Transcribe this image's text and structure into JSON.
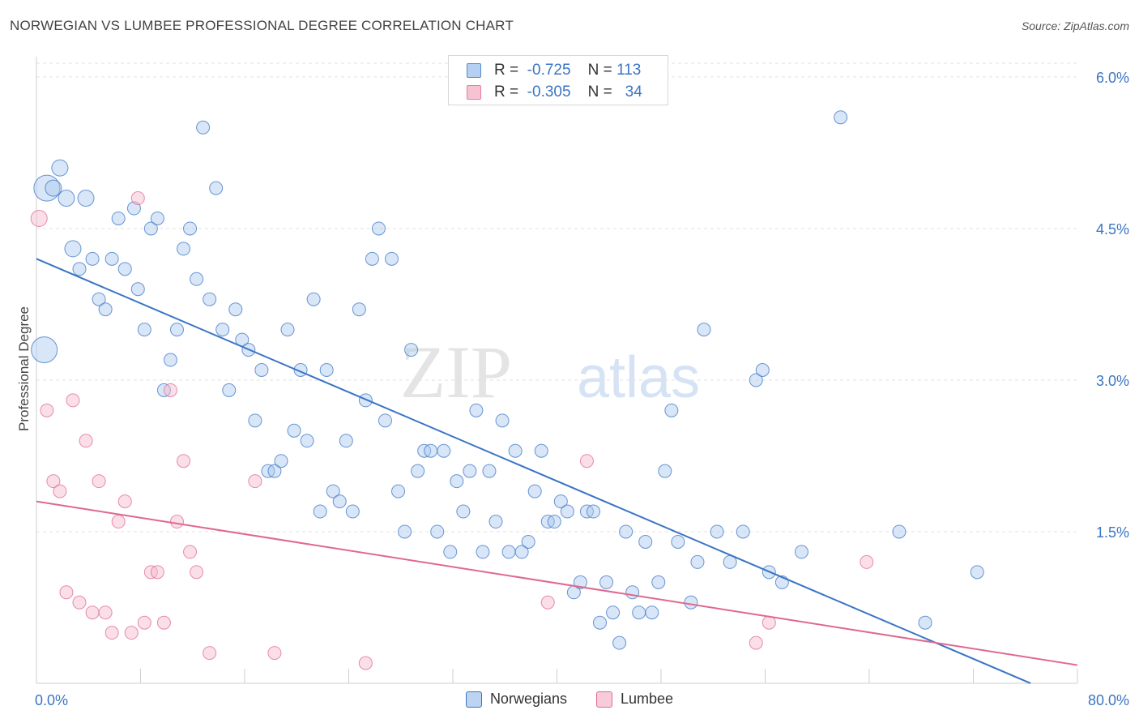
{
  "title": "NORWEGIAN VS LUMBEE PROFESSIONAL DEGREE CORRELATION CHART",
  "source": "Source: ZipAtlas.com",
  "watermark": {
    "zip": "ZIP",
    "atlas": "atlas"
  },
  "colors": {
    "blue": "#3a75c4",
    "blue_fill": "#a9c8ee",
    "pink": "#e0688f",
    "pink_fill": "#f5b9cc",
    "label": "#3a75c4"
  },
  "legend": {
    "rows": [
      {
        "r_label": "R =",
        "r_value": "-0.725",
        "n_label": "N =",
        "n_value": "113"
      },
      {
        "r_label": "R =",
        "r_value": "-0.305",
        "n_label": "N =",
        "n_value": "34"
      }
    ]
  },
  "chart_data": {
    "type": "scatter",
    "title": "NORWEGIAN VS LUMBEE PROFESSIONAL DEGREE CORRELATION CHART",
    "xlabel": "",
    "ylabel": "Professional Degree",
    "xlim": [
      0,
      80
    ],
    "ylim": [
      0,
      6.2
    ],
    "x_tick_labels": [
      "0.0%",
      "80.0%"
    ],
    "y_ticks": [
      1.5,
      3.0,
      4.5,
      6.0
    ],
    "y_tick_labels": [
      "1.5%",
      "3.0%",
      "4.5%",
      "6.0%"
    ],
    "grid": "horizontal dashed",
    "legend_position": "top-center",
    "series": [
      {
        "name": "Norwegians",
        "r": -0.725,
        "n": 113,
        "trend": [
          [
            0,
            4.2
          ],
          [
            76.4,
            0
          ]
        ],
        "points": [
          [
            0.6,
            3.3,
            3
          ],
          [
            0.8,
            4.9,
            3
          ],
          [
            1.3,
            4.9,
            2
          ],
          [
            1.8,
            5.1,
            2
          ],
          [
            2.3,
            4.8,
            2
          ],
          [
            2.8,
            4.3,
            2
          ],
          [
            3.3,
            4.1,
            1
          ],
          [
            3.8,
            4.8,
            2
          ],
          [
            4.3,
            4.2,
            1
          ],
          [
            4.8,
            3.8,
            1
          ],
          [
            5.3,
            3.7,
            1
          ],
          [
            5.8,
            4.2,
            1
          ],
          [
            6.3,
            4.6,
            1
          ],
          [
            6.8,
            4.1,
            1
          ],
          [
            7.5,
            4.7,
            1
          ],
          [
            7.8,
            3.9,
            1
          ],
          [
            8.3,
            3.5,
            1
          ],
          [
            8.8,
            4.5,
            1
          ],
          [
            9.3,
            4.6,
            1
          ],
          [
            9.8,
            2.9,
            1
          ],
          [
            10.3,
            3.2,
            1
          ],
          [
            10.8,
            3.5,
            1
          ],
          [
            11.3,
            4.3,
            1
          ],
          [
            11.8,
            4.5,
            1
          ],
          [
            12.3,
            4.0,
            1
          ],
          [
            12.8,
            5.5,
            1
          ],
          [
            13.3,
            3.8,
            1
          ],
          [
            13.8,
            4.9,
            1
          ],
          [
            14.3,
            3.5,
            1
          ],
          [
            14.8,
            2.9,
            1
          ],
          [
            15.3,
            3.7,
            1
          ],
          [
            15.8,
            3.4,
            1
          ],
          [
            16.3,
            3.3,
            1
          ],
          [
            16.8,
            2.6,
            1
          ],
          [
            17.3,
            3.1,
            1
          ],
          [
            17.8,
            2.1,
            1
          ],
          [
            18.3,
            2.1,
            1
          ],
          [
            18.8,
            2.2,
            1
          ],
          [
            19.3,
            3.5,
            1
          ],
          [
            19.8,
            2.5,
            1
          ],
          [
            20.3,
            3.1,
            1
          ],
          [
            20.8,
            2.4,
            1
          ],
          [
            21.3,
            3.8,
            1
          ],
          [
            21.8,
            1.7,
            1
          ],
          [
            22.3,
            3.1,
            1
          ],
          [
            22.8,
            1.9,
            1
          ],
          [
            23.3,
            1.8,
            1
          ],
          [
            23.8,
            2.4,
            1
          ],
          [
            24.3,
            1.7,
            1
          ],
          [
            24.8,
            3.7,
            1
          ],
          [
            25.3,
            2.8,
            1
          ],
          [
            25.8,
            4.2,
            1
          ],
          [
            26.3,
            4.5,
            1
          ],
          [
            26.8,
            2.6,
            1
          ],
          [
            27.3,
            4.2,
            1
          ],
          [
            27.8,
            1.9,
            1
          ],
          [
            28.3,
            1.5,
            1
          ],
          [
            28.8,
            3.3,
            1
          ],
          [
            29.3,
            2.1,
            1
          ],
          [
            29.8,
            2.3,
            1
          ],
          [
            30.3,
            2.3,
            1
          ],
          [
            30.8,
            1.5,
            1
          ],
          [
            31.3,
            2.3,
            1
          ],
          [
            31.8,
            1.3,
            1
          ],
          [
            32.3,
            2.0,
            1
          ],
          [
            32.8,
            1.7,
            1
          ],
          [
            33.3,
            2.1,
            1
          ],
          [
            33.8,
            2.7,
            1
          ],
          [
            34.3,
            1.3,
            1
          ],
          [
            34.8,
            2.1,
            1
          ],
          [
            35.3,
            1.6,
            1
          ],
          [
            35.8,
            2.6,
            1
          ],
          [
            36.3,
            1.3,
            1
          ],
          [
            36.8,
            2.3,
            1
          ],
          [
            37.3,
            1.3,
            1
          ],
          [
            37.8,
            1.4,
            1
          ],
          [
            38.3,
            1.9,
            1
          ],
          [
            38.8,
            2.3,
            1
          ],
          [
            39.3,
            1.6,
            1
          ],
          [
            39.8,
            1.6,
            1
          ],
          [
            40.3,
            1.8,
            1
          ],
          [
            40.8,
            1.7,
            1
          ],
          [
            41.3,
            0.9,
            1
          ],
          [
            41.8,
            1.0,
            1
          ],
          [
            42.3,
            1.7,
            1
          ],
          [
            42.8,
            1.7,
            1
          ],
          [
            43.3,
            0.6,
            1
          ],
          [
            43.8,
            1.0,
            1
          ],
          [
            44.3,
            0.7,
            1
          ],
          [
            44.8,
            0.4,
            1
          ],
          [
            45.3,
            1.5,
            1
          ],
          [
            45.8,
            0.9,
            1
          ],
          [
            46.3,
            0.7,
            1
          ],
          [
            46.8,
            1.4,
            1
          ],
          [
            47.3,
            0.7,
            1
          ],
          [
            47.8,
            1.0,
            1
          ],
          [
            48.3,
            2.1,
            1
          ],
          [
            48.8,
            2.7,
            1
          ],
          [
            49.3,
            1.4,
            1
          ],
          [
            50.3,
            0.8,
            1
          ],
          [
            50.8,
            1.2,
            1
          ],
          [
            51.3,
            3.5,
            1
          ],
          [
            52.3,
            1.5,
            1
          ],
          [
            53.3,
            1.2,
            1
          ],
          [
            54.3,
            1.5,
            1
          ],
          [
            55.3,
            3.0,
            1
          ],
          [
            55.8,
            3.1,
            1
          ],
          [
            56.3,
            1.1,
            1
          ],
          [
            57.3,
            1.0,
            1
          ],
          [
            58.8,
            1.3,
            1
          ],
          [
            61.8,
            5.6,
            1
          ],
          [
            66.3,
            1.5,
            1
          ],
          [
            68.3,
            0.6,
            1
          ],
          [
            72.3,
            1.1,
            1
          ]
        ]
      },
      {
        "name": "Lumbee",
        "r": -0.305,
        "n": 34,
        "trend": [
          [
            0,
            1.8
          ],
          [
            80,
            0.18
          ]
        ],
        "points": [
          [
            0.2,
            4.6,
            2
          ],
          [
            0.8,
            2.7,
            1
          ],
          [
            1.3,
            2.0,
            1
          ],
          [
            1.8,
            1.9,
            1
          ],
          [
            2.3,
            0.9,
            1
          ],
          [
            2.8,
            2.8,
            1
          ],
          [
            3.3,
            0.8,
            1
          ],
          [
            3.8,
            2.4,
            1
          ],
          [
            4.3,
            0.7,
            1
          ],
          [
            4.8,
            2.0,
            1
          ],
          [
            5.3,
            0.7,
            1
          ],
          [
            5.8,
            0.5,
            1
          ],
          [
            6.3,
            1.6,
            1
          ],
          [
            6.8,
            1.8,
            1
          ],
          [
            7.3,
            0.5,
            1
          ],
          [
            7.8,
            4.8,
            1
          ],
          [
            8.3,
            0.6,
            1
          ],
          [
            8.8,
            1.1,
            1
          ],
          [
            9.3,
            1.1,
            1
          ],
          [
            9.8,
            0.6,
            1
          ],
          [
            10.3,
            2.9,
            1
          ],
          [
            10.8,
            1.6,
            1
          ],
          [
            11.3,
            2.2,
            1
          ],
          [
            11.8,
            1.3,
            1
          ],
          [
            12.3,
            1.1,
            1
          ],
          [
            13.3,
            0.3,
            1
          ],
          [
            16.8,
            2.0,
            1
          ],
          [
            18.3,
            0.3,
            1
          ],
          [
            25.3,
            0.2,
            1
          ],
          [
            39.3,
            0.8,
            1
          ],
          [
            42.3,
            2.2,
            1
          ],
          [
            55.3,
            0.4,
            1
          ],
          [
            56.3,
            0.6,
            1
          ],
          [
            63.8,
            1.2,
            1
          ]
        ]
      }
    ]
  },
  "bottom_legend": [
    {
      "label": "Norwegians"
    },
    {
      "label": "Lumbee"
    }
  ]
}
